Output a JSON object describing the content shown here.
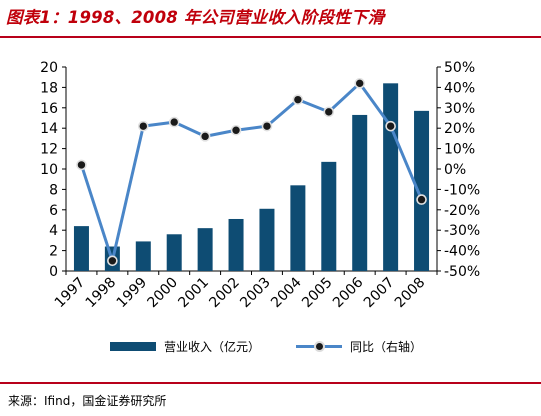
{
  "title": "图表1：1998、2008 年公司营业收入阶段性下滑",
  "source": {
    "label": "来源：",
    "text": "Ifind，国金证券研究所"
  },
  "legend": {
    "bar_label": "营业收入（亿元）",
    "line_label": "同比（右轴）"
  },
  "colors": {
    "bar": "#0e4c73",
    "line": "#4a86c8",
    "marker": "#1a1a1a",
    "accent": "#c0000b"
  },
  "chart_data": {
    "type": "bar",
    "categories": [
      "1997",
      "1998",
      "1999",
      "2000",
      "2001",
      "2002",
      "2003",
      "2004",
      "2005",
      "2006",
      "2007",
      "2008"
    ],
    "series": [
      {
        "name": "营业收入（亿元）",
        "type": "bar",
        "axis": "left",
        "values": [
          4.4,
          2.4,
          2.9,
          3.6,
          4.2,
          5.1,
          6.1,
          8.4,
          10.7,
          15.3,
          18.4,
          15.7
        ]
      },
      {
        "name": "同比（右轴）",
        "type": "line",
        "axis": "right",
        "values": [
          2,
          -45,
          21,
          23,
          16,
          19,
          21,
          34,
          28,
          42,
          21,
          -15
        ]
      }
    ],
    "y_left": {
      "min": 0,
      "max": 20,
      "step": 2,
      "ticks": [
        "0",
        "2",
        "4",
        "6",
        "8",
        "10",
        "12",
        "14",
        "16",
        "18",
        "20"
      ]
    },
    "y_right": {
      "min": -50,
      "max": 50,
      "step": 10,
      "ticks": [
        "-50%",
        "-40%",
        "-30%",
        "-20%",
        "-10%",
        "0%",
        "10%",
        "20%",
        "30%",
        "40%",
        "50%"
      ]
    },
    "grid": false,
    "legend_position": "bottom"
  }
}
